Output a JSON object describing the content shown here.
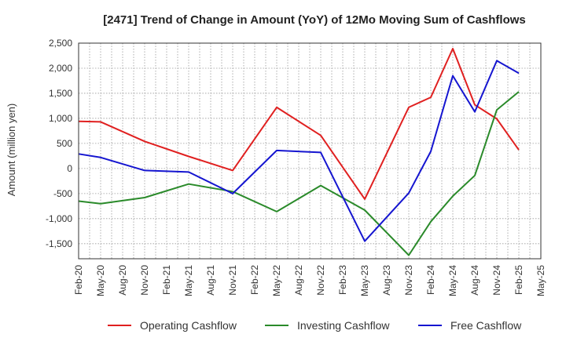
{
  "chart_data": {
    "type": "line",
    "title": "[2471]  Trend of Change in Amount (YoY) of 12Mo Moving Sum of Cashflows",
    "ylabel": "Amount (million yen)",
    "xlabel": "",
    "ylim": [
      -1800,
      2500
    ],
    "yticks": [
      2500,
      2000,
      1500,
      1000,
      500,
      0,
      -500,
      -1000,
      -1500
    ],
    "ytick_labels": [
      "2,500",
      "2,000",
      "1,500",
      "1,000",
      "500",
      "0",
      "-500",
      "-1,000",
      "-1,500"
    ],
    "categories": [
      "Feb-20",
      "May-20",
      "Aug-20",
      "Nov-20",
      "Feb-21",
      "May-21",
      "Aug-21",
      "Nov-21",
      "Feb-22",
      "May-22",
      "Aug-22",
      "Nov-22",
      "Feb-23",
      "May-23",
      "Aug-23",
      "Nov-23",
      "Feb-24",
      "May-24",
      "Aug-24",
      "Nov-24",
      "Feb-25",
      "May-25"
    ],
    "grid": true,
    "legend_position": "bottom",
    "series": [
      {
        "name": "Operating Cashflow",
        "color": "#e02020",
        "values": [
          940,
          930,
          null,
          540,
          null,
          240,
          null,
          -40,
          null,
          1220,
          null,
          660,
          null,
          -610,
          null,
          1220,
          1420,
          2390,
          1270,
          990,
          370,
          null
        ]
      },
      {
        "name": "Investing Cashflow",
        "color": "#2a8a2a",
        "values": [
          -650,
          -700,
          null,
          -580,
          null,
          -310,
          null,
          -460,
          null,
          -860,
          null,
          -340,
          null,
          -830,
          null,
          -1730,
          -1060,
          -550,
          -140,
          1170,
          1530,
          null
        ]
      },
      {
        "name": "Free Cashflow",
        "color": "#1515d0",
        "values": [
          290,
          220,
          null,
          -40,
          null,
          -70,
          null,
          -500,
          null,
          360,
          null,
          320,
          null,
          -1450,
          null,
          -490,
          340,
          1850,
          1130,
          2150,
          1900,
          null
        ]
      }
    ]
  }
}
